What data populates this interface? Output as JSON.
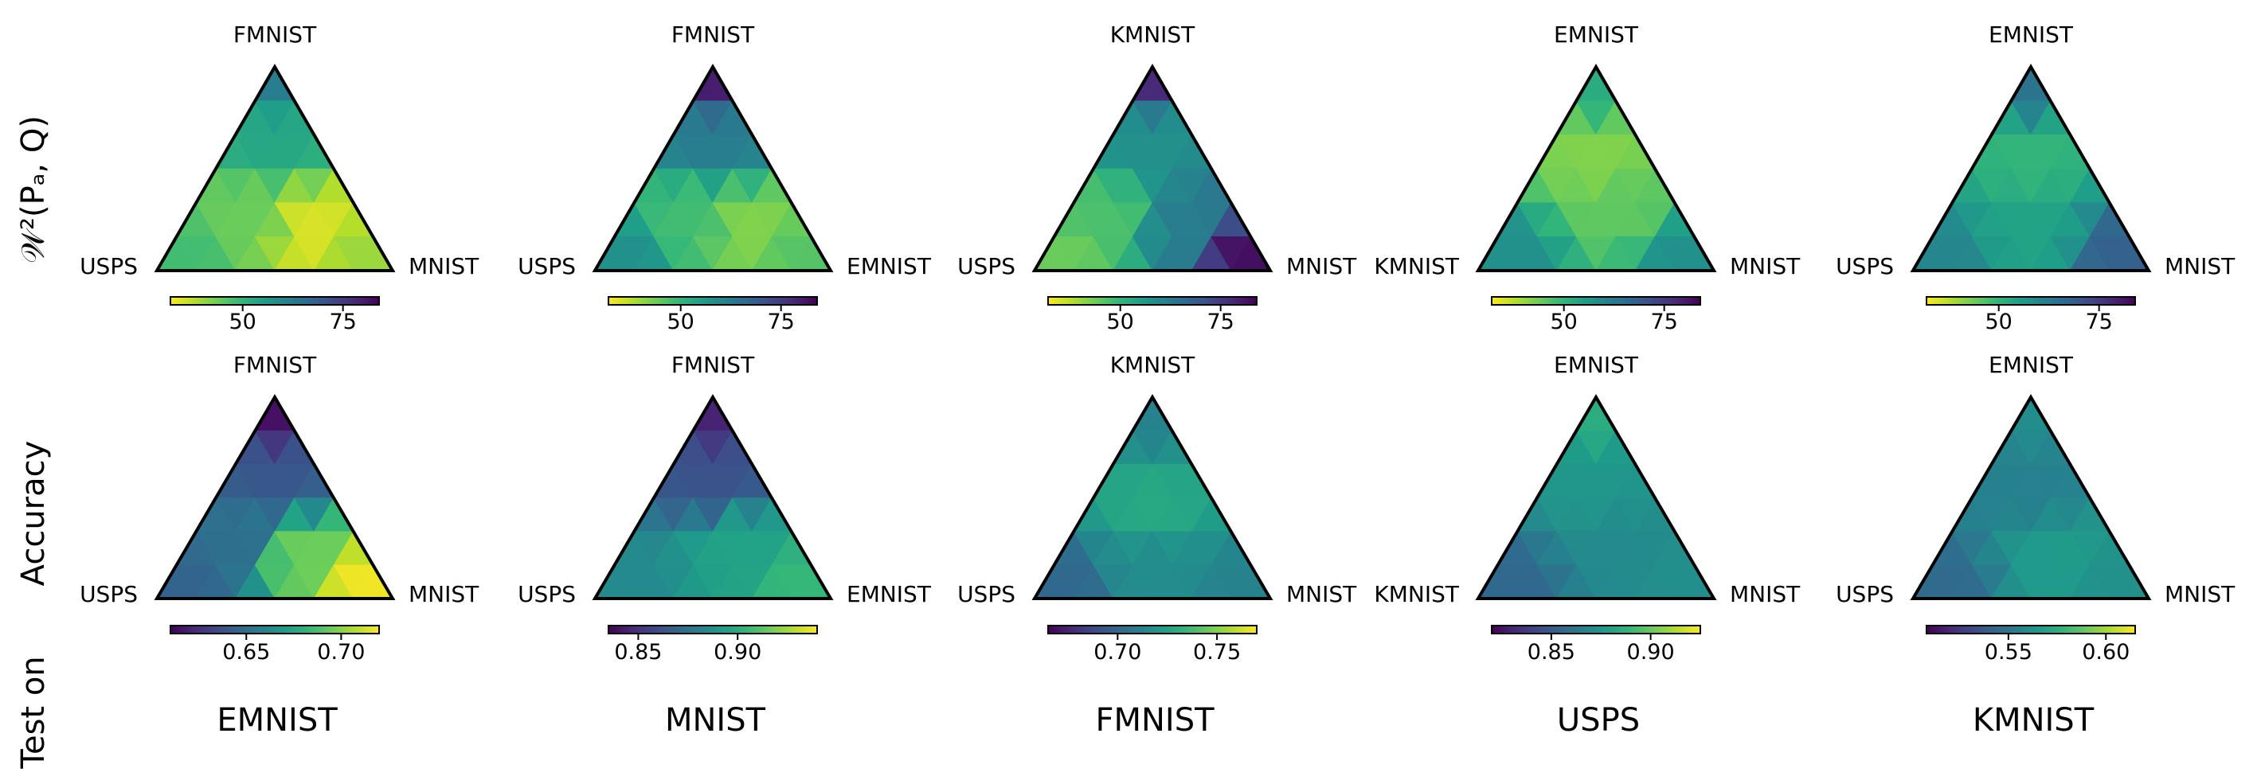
{
  "row_labels": {
    "top": "𝒲²(Pₐ, Q)",
    "middle": "Accuracy",
    "bottom": "Test on"
  },
  "colors": {
    "viridis": [
      "#440154",
      "#482878",
      "#3e4a89",
      "#31688e",
      "#26828e",
      "#1f9e89",
      "#35b779",
      "#6ece58",
      "#b5de2b",
      "#fde725"
    ],
    "edge": "#000000"
  },
  "chart_data": [
    {
      "type": "heatmap",
      "panel": "distance",
      "test_dataset": "EMNIST",
      "vertices": {
        "top": "FMNIST",
        "left": "USPS",
        "right": "MNIST"
      },
      "colorbar": {
        "min": 32,
        "max": 84,
        "ticks": [
          50,
          75
        ],
        "tick_labels": [
          "50",
          "75"
        ],
        "reversed": true
      },
      "ramp": [
        {
          "x": 0.5,
          "y": 0.05,
          "v": 62
        },
        {
          "x": 0.5,
          "y": 0.35,
          "v": 53
        },
        {
          "x": 0.1,
          "y": 0.95,
          "v": 48
        },
        {
          "x": 0.9,
          "y": 0.95,
          "v": 40
        },
        {
          "x": 0.65,
          "y": 0.8,
          "v": 35
        },
        {
          "x": 0.4,
          "y": 0.75,
          "v": 44
        }
      ]
    },
    {
      "type": "heatmap",
      "panel": "distance",
      "test_dataset": "MNIST",
      "vertices": {
        "top": "FMNIST",
        "left": "USPS",
        "right": "EMNIST"
      },
      "colorbar": {
        "min": 32,
        "max": 84,
        "ticks": [
          50,
          75
        ],
        "tick_labels": [
          "50",
          "75"
        ],
        "reversed": true
      },
      "ramp": [
        {
          "x": 0.5,
          "y": 0.05,
          "v": 80
        },
        {
          "x": 0.5,
          "y": 0.35,
          "v": 62
        },
        {
          "x": 0.1,
          "y": 0.95,
          "v": 58
        },
        {
          "x": 0.9,
          "y": 0.95,
          "v": 46
        },
        {
          "x": 0.65,
          "y": 0.8,
          "v": 42
        },
        {
          "x": 0.4,
          "y": 0.75,
          "v": 48
        }
      ]
    },
    {
      "type": "heatmap",
      "panel": "distance",
      "test_dataset": "FMNIST",
      "vertices": {
        "top": "KMNIST",
        "left": "USPS",
        "right": "MNIST"
      },
      "colorbar": {
        "min": 32,
        "max": 84,
        "ticks": [
          50,
          75
        ],
        "tick_labels": [
          "50",
          "75"
        ],
        "reversed": true
      },
      "ramp": [
        {
          "x": 0.5,
          "y": 0.05,
          "v": 78
        },
        {
          "x": 0.5,
          "y": 0.35,
          "v": 58
        },
        {
          "x": 0.1,
          "y": 0.95,
          "v": 44
        },
        {
          "x": 0.9,
          "y": 0.95,
          "v": 82
        },
        {
          "x": 0.65,
          "y": 0.8,
          "v": 62
        },
        {
          "x": 0.3,
          "y": 0.75,
          "v": 47
        }
      ]
    },
    {
      "type": "heatmap",
      "panel": "distance",
      "test_dataset": "USPS",
      "vertices": {
        "top": "EMNIST",
        "left": "KMNIST",
        "right": "MNIST"
      },
      "colorbar": {
        "min": 32,
        "max": 84,
        "ticks": [
          50,
          75
        ],
        "tick_labels": [
          "50",
          "75"
        ],
        "reversed": true
      },
      "ramp": [
        {
          "x": 0.5,
          "y": 0.05,
          "v": 52
        },
        {
          "x": 0.5,
          "y": 0.45,
          "v": 42
        },
        {
          "x": 0.1,
          "y": 0.95,
          "v": 58
        },
        {
          "x": 0.9,
          "y": 0.95,
          "v": 58
        },
        {
          "x": 0.6,
          "y": 0.7,
          "v": 45
        }
      ]
    },
    {
      "type": "heatmap",
      "panel": "distance",
      "test_dataset": "KMNIST",
      "vertices": {
        "top": "EMNIST",
        "left": "USPS",
        "right": "MNIST"
      },
      "colorbar": {
        "min": 32,
        "max": 84,
        "ticks": [
          50,
          75
        ],
        "tick_labels": [
          "50",
          "75"
        ],
        "reversed": true
      },
      "ramp": [
        {
          "x": 0.5,
          "y": 0.05,
          "v": 64
        },
        {
          "x": 0.5,
          "y": 0.45,
          "v": 50
        },
        {
          "x": 0.1,
          "y": 0.95,
          "v": 60
        },
        {
          "x": 0.9,
          "y": 0.95,
          "v": 68
        },
        {
          "x": 0.5,
          "y": 0.8,
          "v": 54
        }
      ]
    },
    {
      "type": "heatmap",
      "panel": "accuracy",
      "test_dataset": "EMNIST",
      "vertices": {
        "top": "FMNIST",
        "left": "USPS",
        "right": "MNIST"
      },
      "colorbar": {
        "min": 0.61,
        "max": 0.72,
        "ticks": [
          0.65,
          0.7
        ],
        "tick_labels": [
          "0.65",
          "0.70"
        ],
        "reversed": false
      },
      "ramp": [
        {
          "x": 0.5,
          "y": 0.05,
          "v": 0.615
        },
        {
          "x": 0.5,
          "y": 0.4,
          "v": 0.64
        },
        {
          "x": 0.1,
          "y": 0.95,
          "v": 0.645
        },
        {
          "x": 0.9,
          "y": 0.95,
          "v": 0.718
        },
        {
          "x": 0.6,
          "y": 0.8,
          "v": 0.695
        },
        {
          "x": 0.35,
          "y": 0.75,
          "v": 0.65
        }
      ]
    },
    {
      "type": "heatmap",
      "panel": "accuracy",
      "test_dataset": "MNIST",
      "vertices": {
        "top": "FMNIST",
        "left": "USPS",
        "right": "EMNIST"
      },
      "colorbar": {
        "min": 0.835,
        "max": 0.94,
        "ticks": [
          0.85,
          0.9
        ],
        "tick_labels": [
          "0.85",
          "0.90"
        ],
        "reversed": false
      },
      "ramp": [
        {
          "x": 0.5,
          "y": 0.05,
          "v": 0.845
        },
        {
          "x": 0.5,
          "y": 0.4,
          "v": 0.862
        },
        {
          "x": 0.1,
          "y": 0.95,
          "v": 0.885
        },
        {
          "x": 0.9,
          "y": 0.95,
          "v": 0.905
        },
        {
          "x": 0.6,
          "y": 0.75,
          "v": 0.895
        }
      ]
    },
    {
      "type": "heatmap",
      "panel": "accuracy",
      "test_dataset": "FMNIST",
      "vertices": {
        "top": "KMNIST",
        "left": "USPS",
        "right": "MNIST"
      },
      "colorbar": {
        "min": 0.665,
        "max": 0.77,
        "ticks": [
          0.7,
          0.75
        ],
        "tick_labels": [
          "0.70",
          "0.75"
        ],
        "reversed": false
      },
      "ramp": [
        {
          "x": 0.5,
          "y": 0.05,
          "v": 0.712
        },
        {
          "x": 0.5,
          "y": 0.55,
          "v": 0.728
        },
        {
          "x": 0.1,
          "y": 0.95,
          "v": 0.7
        },
        {
          "x": 0.9,
          "y": 0.95,
          "v": 0.712
        },
        {
          "x": 0.5,
          "y": 0.85,
          "v": 0.716
        }
      ]
    },
    {
      "type": "heatmap",
      "panel": "accuracy",
      "test_dataset": "USPS",
      "vertices": {
        "top": "EMNIST",
        "left": "KMNIST",
        "right": "MNIST"
      },
      "colorbar": {
        "min": 0.82,
        "max": 0.925,
        "ticks": [
          0.85,
          0.9
        ],
        "tick_labels": [
          "0.85",
          "0.90"
        ],
        "reversed": false
      },
      "ramp": [
        {
          "x": 0.5,
          "y": 0.05,
          "v": 0.885
        },
        {
          "x": 0.5,
          "y": 0.45,
          "v": 0.875
        },
        {
          "x": 0.1,
          "y": 0.95,
          "v": 0.855
        },
        {
          "x": 0.9,
          "y": 0.95,
          "v": 0.872
        },
        {
          "x": 0.6,
          "y": 0.75,
          "v": 0.87
        }
      ]
    },
    {
      "type": "heatmap",
      "panel": "accuracy",
      "test_dataset": "KMNIST",
      "vertices": {
        "top": "EMNIST",
        "left": "USPS",
        "right": "MNIST"
      },
      "colorbar": {
        "min": 0.508,
        "max": 0.615,
        "ticks": [
          0.55,
          0.6
        ],
        "tick_labels": [
          "0.55",
          "0.60"
        ],
        "reversed": false
      },
      "ramp": [
        {
          "x": 0.5,
          "y": 0.05,
          "v": 0.56
        },
        {
          "x": 0.5,
          "y": 0.45,
          "v": 0.555
        },
        {
          "x": 0.1,
          "y": 0.95,
          "v": 0.545
        },
        {
          "x": 0.9,
          "y": 0.95,
          "v": 0.562
        },
        {
          "x": 0.6,
          "y": 0.8,
          "v": 0.566
        }
      ]
    }
  ]
}
